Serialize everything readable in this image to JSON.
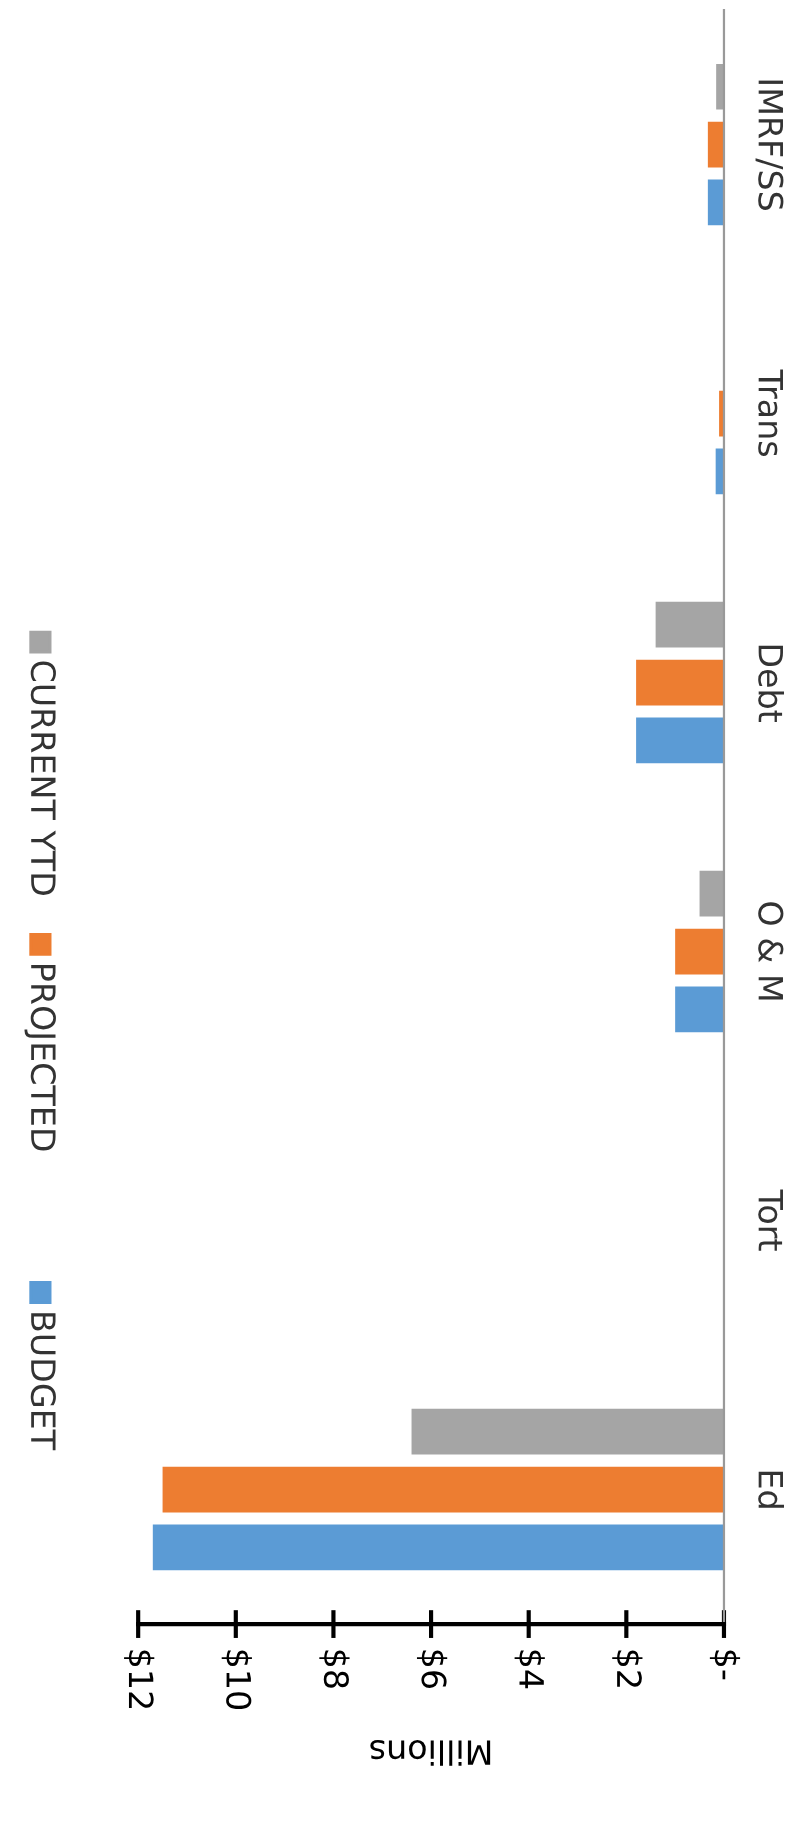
{
  "chart_data": {
    "type": "bar",
    "orientation": "horizontal",
    "xlabel": "Millions",
    "categories": [
      "IMRF/SS",
      "Trans",
      "Debt",
      "O & M",
      "Tort",
      "Ed"
    ],
    "series": [
      {
        "name": "BUDGET",
        "color": "#5b9bd5",
        "values": [
          0.33,
          0.17,
          1.8,
          1.0,
          null,
          11.7
        ]
      },
      {
        "name": "PROJECTED",
        "color": "#ed7d31",
        "values": [
          0.33,
          0.1,
          1.8,
          1.0,
          null,
          11.5
        ]
      },
      {
        "name": "CURRENT YTD",
        "color": "#a5a5a5",
        "values": [
          0.16,
          0.02,
          1.4,
          0.5,
          null,
          6.4
        ]
      }
    ],
    "xlim": [
      12,
      0
    ],
    "xticks": [
      {
        "value": 12,
        "label": "$12"
      },
      {
        "value": 10,
        "label": "$10"
      },
      {
        "value": 8,
        "label": "$8"
      },
      {
        "value": 6,
        "label": "$6"
      },
      {
        "value": 4,
        "label": "$4"
      },
      {
        "value": 2,
        "label": "$2"
      },
      {
        "value": 0,
        "label": "$-"
      }
    ],
    "legend": "left"
  }
}
